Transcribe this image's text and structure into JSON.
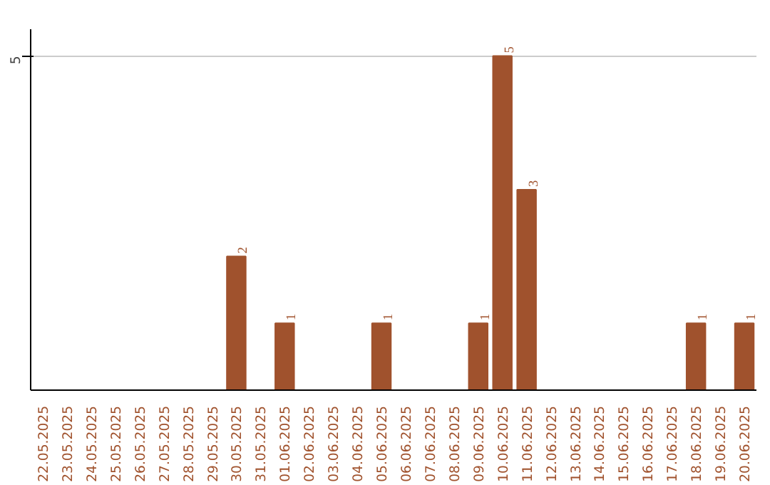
{
  "chart_data": {
    "type": "bar",
    "categories": [
      "22.05.2025",
      "23.05.2025",
      "24.05.2025",
      "25.05.2025",
      "26.05.2025",
      "27.05.2025",
      "28.05.2025",
      "29.05.2025",
      "30.05.2025",
      "31.05.2025",
      "01.06.2025",
      "02.06.2025",
      "03.06.2025",
      "04.06.2025",
      "05.06.2025",
      "06.06.2025",
      "07.06.2025",
      "08.06.2025",
      "09.06.2025",
      "10.06.2025",
      "11.06.2025",
      "12.06.2025",
      "13.06.2025",
      "14.06.2025",
      "15.06.2025",
      "16.06.2025",
      "17.06.2025",
      "18.06.2025",
      "19.06.2025",
      "20.06.2025"
    ],
    "values": [
      0,
      0,
      0,
      0,
      0,
      0,
      0,
      0,
      2,
      0,
      1,
      0,
      0,
      0,
      1,
      0,
      0,
      0,
      1,
      5,
      3,
      0,
      0,
      0,
      0,
      0,
      0,
      1,
      0,
      1
    ],
    "value_labels": [
      null,
      null,
      null,
      null,
      null,
      null,
      null,
      null,
      "2",
      null,
      "1",
      null,
      null,
      null,
      "1",
      null,
      null,
      null,
      "1",
      "5",
      "3",
      null,
      null,
      null,
      null,
      null,
      null,
      "1",
      null,
      "1"
    ],
    "color": "#a0522d",
    "ylim": [
      0,
      5.4
    ],
    "yticks": [
      5
    ],
    "grid": "y"
  }
}
